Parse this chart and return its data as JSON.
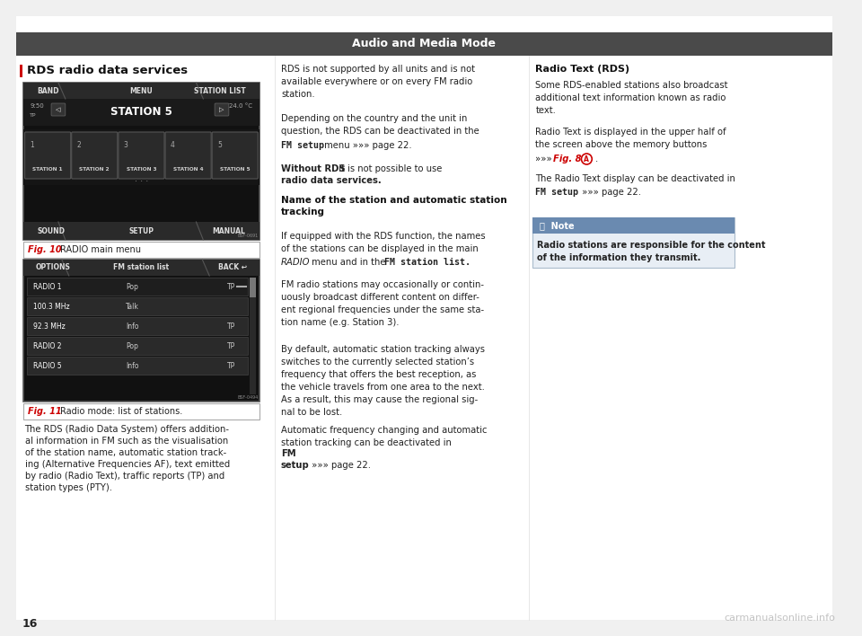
{
  "page_bg": "#f0f0f0",
  "content_bg": "#ffffff",
  "header_bg": "#4a4a4a",
  "header_text": "Audio and Media Mode",
  "header_text_color": "#ffffff",
  "left_bar_color": "#cc0000",
  "section_title": "RDS radio data services",
  "fig10_label": "Fig. 10",
  "fig10_label_color": "#cc0000",
  "fig10_caption": "RADIO main menu",
  "fig11_label": "Fig. 11",
  "fig11_label_color": "#cc0000",
  "fig11_caption": "Radio mode: list of stations.",
  "col1_text": [
    "The RDS (Radio Data System) offers addition-",
    "al information in FM such as the visualisation",
    "of the station name, automatic station track-",
    "ing (Alternative Frequencies AF), text emitted",
    "by radio (Radio Text), traffic reports (TP) and",
    "station types (PTY)."
  ],
  "col3_content": {
    "radio_text_header": "Radio Text (RDS)",
    "para1": "Some RDS-enabled stations also broadcast\nadditional text information known as radio\ntext.",
    "para2": "Radio Text is displayed in the upper half of\nthe screen above the memory buttons",
    "para3": "The Radio Text display can be deactivated in",
    "note_bg": "#e8eef5",
    "note_header_bg": "#6a8ab0",
    "note_header_text": "ⓘ  Note",
    "note_text": "Radio stations are responsible for the content\nof the information they transmit."
  },
  "page_num": "16",
  "watermark": "carmanualsonline.info"
}
